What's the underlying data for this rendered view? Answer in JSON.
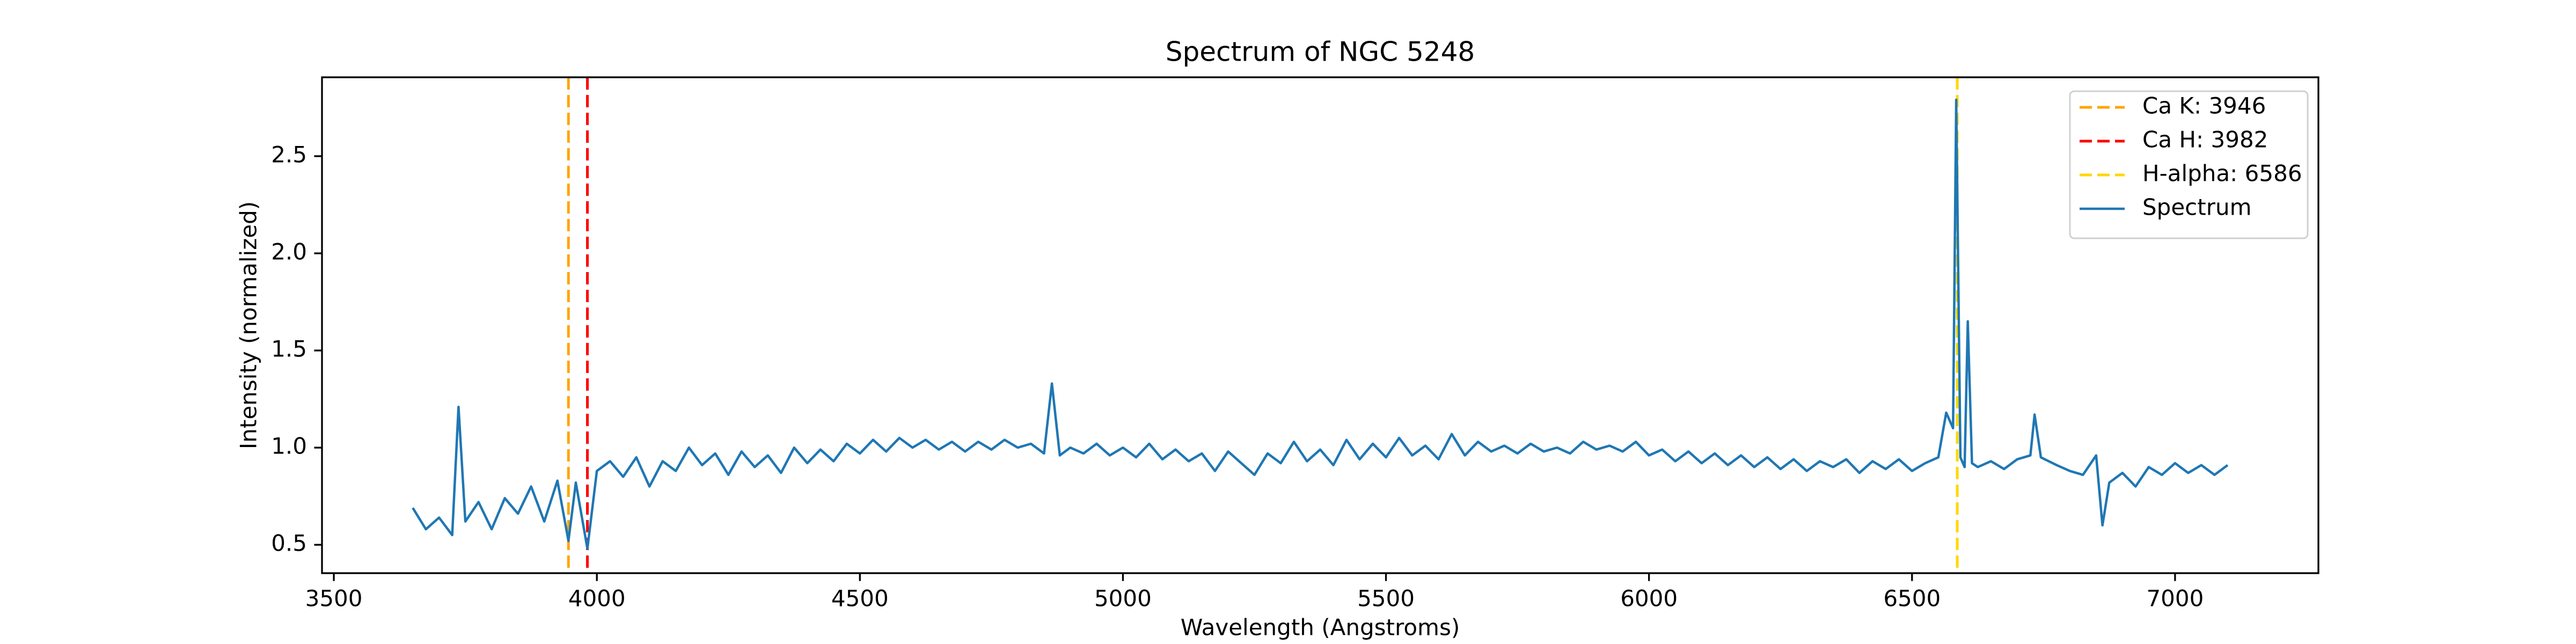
{
  "chart_data": {
    "type": "line",
    "title": "Spectrum of NGC 5248",
    "x_label": "Wavelength (Angstroms)",
    "y_label": "Intensity (normalized)",
    "xlim": [
      3477.5,
      7272.5
    ],
    "xticks": [
      3500,
      4000,
      4500,
      5000,
      5500,
      6000,
      6500,
      7000
    ],
    "ylim": [
      0.354,
      2.906
    ],
    "yticks": [
      0.5,
      {
        "value": 1,
        "label": "1.0"
      },
      1.5,
      {
        "value": 2,
        "label": "2.0"
      },
      2.5
    ],
    "legend": "upper right",
    "grid": false,
    "vlines": [
      {
        "name": "Ca K: 3946",
        "x": 3946,
        "color": "#ffa500"
      },
      {
        "name": "Ca H: 3982",
        "x": 3982,
        "color": "#ff0000"
      },
      {
        "name": "H-alpha: 6586",
        "x": 6586,
        "color": "#ffd700"
      }
    ],
    "x": [
      3650,
      3675,
      3700,
      3725,
      3737,
      3750,
      3775,
      3800,
      3825,
      3850,
      3875,
      3900,
      3925,
      3946,
      3960,
      3982,
      4000,
      4025,
      4050,
      4075,
      4100,
      4125,
      4150,
      4175,
      4200,
      4225,
      4250,
      4275,
      4300,
      4325,
      4350,
      4375,
      4400,
      4425,
      4450,
      4475,
      4500,
      4525,
      4550,
      4575,
      4600,
      4625,
      4650,
      4675,
      4700,
      4725,
      4750,
      4775,
      4800,
      4825,
      4850,
      4865,
      4880,
      4900,
      4925,
      4950,
      4975,
      5000,
      5025,
      5050,
      5075,
      5100,
      5125,
      5150,
      5175,
      5200,
      5225,
      5250,
      5275,
      5300,
      5325,
      5350,
      5375,
      5400,
      5425,
      5450,
      5475,
      5500,
      5525,
      5550,
      5575,
      5600,
      5625,
      5650,
      5675,
      5700,
      5725,
      5750,
      5775,
      5800,
      5825,
      5850,
      5875,
      5900,
      5925,
      5950,
      5975,
      6000,
      6025,
      6050,
      6075,
      6100,
      6125,
      6150,
      6175,
      6200,
      6225,
      6250,
      6275,
      6300,
      6325,
      6350,
      6375,
      6400,
      6425,
      6450,
      6475,
      6500,
      6525,
      6550,
      6565,
      6578,
      6584,
      6592,
      6600,
      6606,
      6614,
      6625,
      6650,
      6675,
      6700,
      6725,
      6733,
      6745,
      6775,
      6800,
      6825,
      6850,
      6862,
      6875,
      6900,
      6925,
      6950,
      6975,
      7000,
      7025,
      7050,
      7075,
      7100
    ],
    "series": [
      {
        "name": "Spectrum",
        "color": "#1f77b4",
        "values": [
          0.69,
          0.58,
          0.64,
          0.55,
          1.21,
          0.62,
          0.72,
          0.58,
          0.74,
          0.66,
          0.8,
          0.62,
          0.83,
          0.52,
          0.82,
          0.48,
          0.88,
          0.93,
          0.85,
          0.95,
          0.8,
          0.93,
          0.88,
          1.0,
          0.91,
          0.97,
          0.86,
          0.98,
          0.9,
          0.96,
          0.87,
          1.0,
          0.92,
          0.99,
          0.93,
          1.02,
          0.97,
          1.04,
          0.98,
          1.05,
          1.0,
          1.04,
          0.99,
          1.03,
          0.98,
          1.03,
          0.99,
          1.04,
          1.0,
          1.02,
          0.97,
          1.33,
          0.96,
          1.0,
          0.97,
          1.02,
          0.96,
          1.0,
          0.95,
          1.02,
          0.94,
          0.99,
          0.93,
          0.97,
          0.88,
          0.98,
          0.92,
          0.86,
          0.97,
          0.92,
          1.03,
          0.93,
          0.99,
          0.91,
          1.04,
          0.94,
          1.02,
          0.95,
          1.05,
          0.96,
          1.01,
          0.94,
          1.07,
          0.96,
          1.03,
          0.98,
          1.01,
          0.97,
          1.02,
          0.98,
          1.0,
          0.97,
          1.03,
          0.99,
          1.01,
          0.98,
          1.03,
          0.96,
          0.99,
          0.93,
          0.98,
          0.92,
          0.97,
          0.91,
          0.96,
          0.9,
          0.95,
          0.89,
          0.94,
          0.88,
          0.93,
          0.9,
          0.94,
          0.87,
          0.93,
          0.89,
          0.94,
          0.88,
          0.92,
          0.95,
          1.18,
          1.1,
          2.79,
          0.95,
          0.9,
          1.65,
          0.92,
          0.9,
          0.93,
          0.89,
          0.94,
          0.96,
          1.17,
          0.95,
          0.91,
          0.88,
          0.86,
          0.96,
          0.6,
          0.82,
          0.87,
          0.8,
          0.9,
          0.86,
          0.92,
          0.87,
          0.91,
          0.86,
          0.91
        ]
      }
    ]
  }
}
